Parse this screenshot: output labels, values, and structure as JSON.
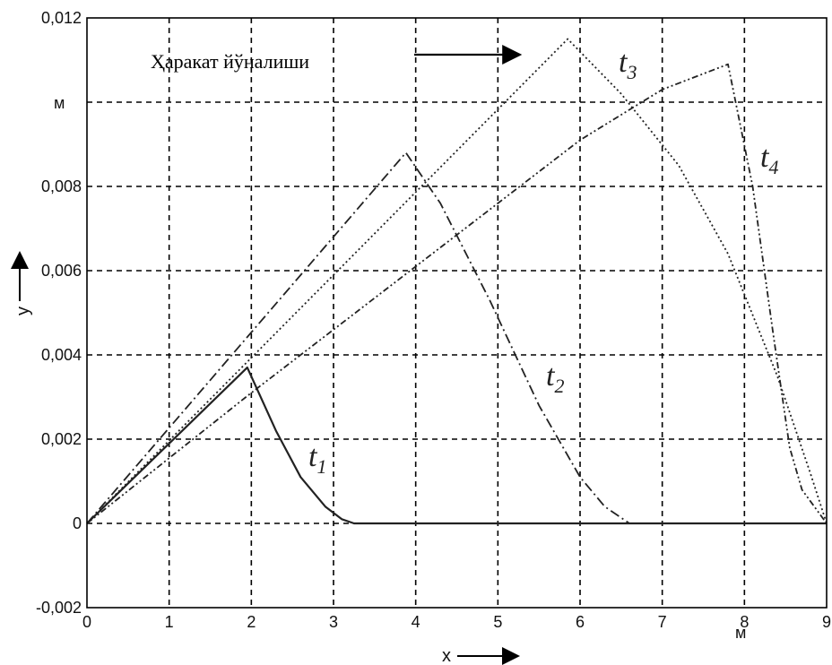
{
  "chart_data": {
    "type": "line",
    "xlim": [
      0,
      9
    ],
    "ylim": [
      -0.002,
      0.012
    ],
    "x_ticks": [
      "0",
      "1",
      "2",
      "3",
      "4",
      "5",
      "6",
      "7",
      "8",
      "9"
    ],
    "y_ticks": [
      "-0,002",
      "0",
      "0,002",
      "0,004",
      "0,006",
      "0,008",
      "0,012"
    ],
    "y_tick_values": [
      -0.002,
      0,
      0.002,
      0.004,
      0.006,
      0.008,
      0.012
    ],
    "y_grid_values": [
      -0.002,
      0,
      0.002,
      0.004,
      0.006,
      0.008,
      0.01,
      0.012
    ],
    "x_unit": "м",
    "y_unit": "м",
    "xlabel": "x",
    "ylabel": "y",
    "annotation": "Ҳаракат йўналиши",
    "grid": true,
    "series": [
      {
        "name": "t1",
        "label_sub": "1",
        "dash": "solid",
        "x": [
          0,
          1.95,
          2.3,
          2.6,
          2.9,
          3.1,
          3.25,
          9
        ],
        "y": [
          0,
          0.0037,
          0.0022,
          0.0011,
          0.0004,
          0.0001,
          0,
          0
        ]
      },
      {
        "name": "t2",
        "label_sub": "2",
        "dash": "long-dash-dot",
        "x": [
          0,
          3.88,
          4.3,
          4.9,
          5.5,
          6.0,
          6.3,
          6.6
        ],
        "y": [
          0,
          0.0088,
          0.0076,
          0.0053,
          0.0028,
          0.0011,
          0.0004,
          0
        ]
      },
      {
        "name": "t3",
        "label_sub": "3",
        "dash": "dotted",
        "x": [
          0,
          5.85,
          6.5,
          7.2,
          7.8,
          8.4,
          8.8,
          9.0
        ],
        "y": [
          0,
          0.0115,
          0.0102,
          0.0085,
          0.0064,
          0.0035,
          0.0012,
          0
        ]
      },
      {
        "name": "t4",
        "label_sub": "4",
        "dash": "dash-dot-dot",
        "x": [
          0,
          2,
          4,
          6,
          7,
          7.8,
          8.1,
          8.35,
          8.55,
          8.7,
          9.0
        ],
        "y": [
          0,
          0.0031,
          0.0061,
          0.0091,
          0.0103,
          0.0109,
          0.008,
          0.0045,
          0.0018,
          0.0008,
          0
        ]
      }
    ]
  }
}
